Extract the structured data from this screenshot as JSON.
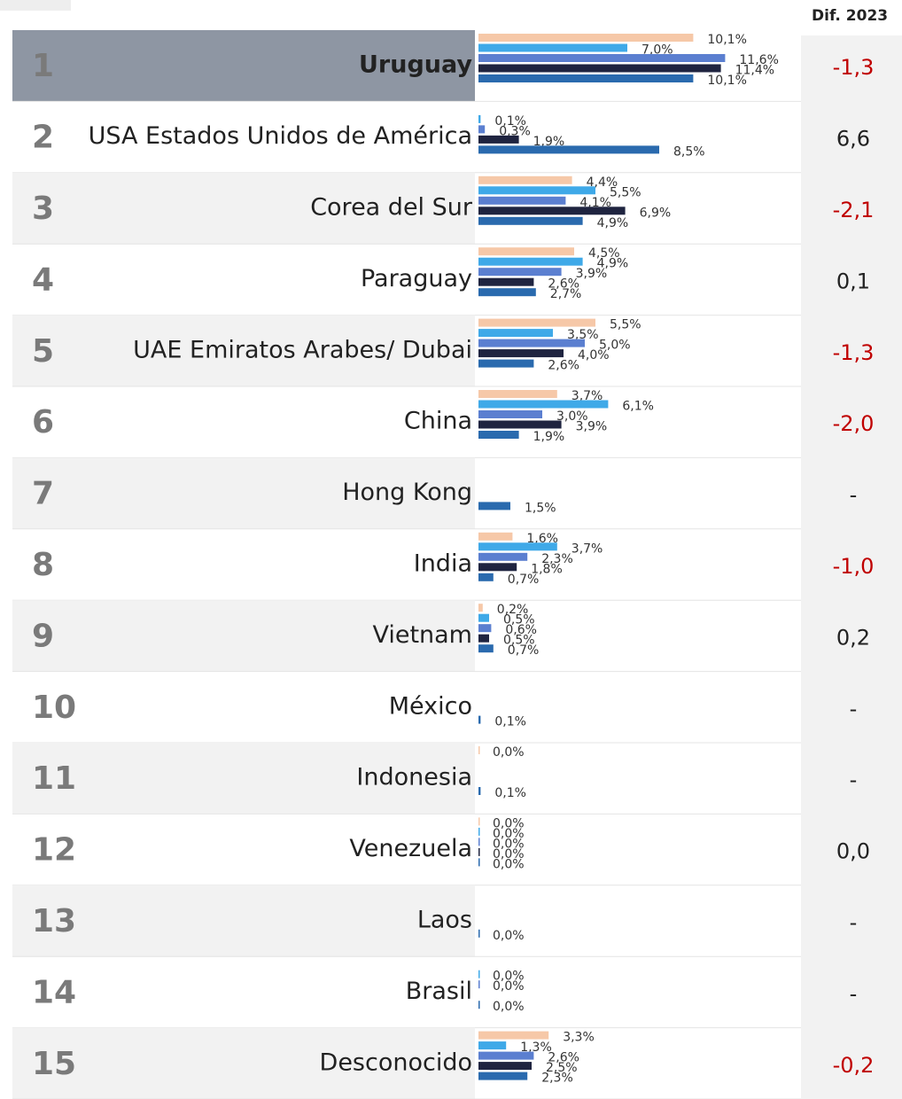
{
  "chart_data": {
    "type": "bar",
    "header": "Dif. 2023",
    "series_colors": [
      "#f6c8a8",
      "#3fa9e8",
      "#5b7fd0",
      "#1f2440",
      "#2a6aae"
    ],
    "rows": [
      {
        "rank": 1,
        "name": "Uruguay",
        "values": [
          10.1,
          7.0,
          11.6,
          11.4,
          10.1
        ],
        "value_labels": [
          "10,1%",
          "7,0%",
          "11,6%",
          "11,4%",
          "10,1%"
        ],
        "dif": "-1,3"
      },
      {
        "rank": 2,
        "name": "USA Estados Unidos de América",
        "values": [
          null,
          0.1,
          0.3,
          1.9,
          8.5
        ],
        "value_labels": [
          null,
          "0,1%",
          "0,3%",
          "1,9%",
          "8,5%"
        ],
        "dif": "6,6"
      },
      {
        "rank": 3,
        "name": "Corea del Sur",
        "values": [
          4.4,
          5.5,
          4.1,
          6.9,
          4.9
        ],
        "value_labels": [
          "4,4%",
          "5,5%",
          "4,1%",
          "6,9%",
          "4,9%"
        ],
        "dif": "-2,1"
      },
      {
        "rank": 4,
        "name": "Paraguay",
        "values": [
          4.5,
          4.9,
          3.9,
          2.6,
          2.7
        ],
        "value_labels": [
          "4,5%",
          "4,9%",
          "3,9%",
          "2,6%",
          "2,7%"
        ],
        "dif": "0,1"
      },
      {
        "rank": 5,
        "name": "UAE Emiratos Arabes/ Dubai",
        "values": [
          5.5,
          3.5,
          5.0,
          4.0,
          2.6
        ],
        "value_labels": [
          "5,5%",
          "3,5%",
          "5,0%",
          "4,0%",
          "2,6%"
        ],
        "dif": "-1,3"
      },
      {
        "rank": 6,
        "name": "China",
        "values": [
          3.7,
          6.1,
          3.0,
          3.9,
          1.9
        ],
        "value_labels": [
          "3,7%",
          "6,1%",
          "3,0%",
          "3,9%",
          "1,9%"
        ],
        "dif": "-2,0"
      },
      {
        "rank": 7,
        "name": "Hong Kong",
        "values": [
          null,
          null,
          null,
          null,
          1.5
        ],
        "value_labels": [
          null,
          null,
          null,
          null,
          "1,5%"
        ],
        "dif": "-"
      },
      {
        "rank": 8,
        "name": "India",
        "values": [
          1.6,
          3.7,
          2.3,
          1.8,
          0.7
        ],
        "value_labels": [
          "1,6%",
          "3,7%",
          "2,3%",
          "1,8%",
          "0,7%"
        ],
        "dif": "-1,0"
      },
      {
        "rank": 9,
        "name": "Vietnam",
        "values": [
          0.2,
          0.5,
          0.6,
          0.5,
          0.7
        ],
        "value_labels": [
          "0,2%",
          "0,5%",
          "0,6%",
          "0,5%",
          "0,7%"
        ],
        "dif": "0,2"
      },
      {
        "rank": 10,
        "name": "México",
        "values": [
          null,
          null,
          null,
          null,
          0.1
        ],
        "value_labels": [
          null,
          null,
          null,
          null,
          "0,1%"
        ],
        "dif": "-"
      },
      {
        "rank": 11,
        "name": "Indonesia",
        "values": [
          0.0,
          null,
          null,
          null,
          0.1
        ],
        "value_labels": [
          "0,0%",
          null,
          null,
          null,
          "0,1%"
        ],
        "dif": "-"
      },
      {
        "rank": 12,
        "name": "Venezuela",
        "values": [
          0.0,
          0.0,
          0.0,
          0.0,
          0.0
        ],
        "value_labels": [
          "0,0%",
          "0,0%",
          "0,0%",
          "0,0%",
          "0,0%"
        ],
        "dif": "0,0"
      },
      {
        "rank": 13,
        "name": "Laos",
        "values": [
          null,
          null,
          null,
          null,
          0.0
        ],
        "value_labels": [
          null,
          null,
          null,
          null,
          "0,0%"
        ],
        "dif": "-"
      },
      {
        "rank": 14,
        "name": "Brasil",
        "values": [
          null,
          0.0,
          0.0,
          null,
          0.0
        ],
        "value_labels": [
          null,
          "0,0%",
          "0,0%",
          null,
          "0,0%"
        ],
        "dif": "-"
      },
      {
        "rank": 15,
        "name": "Desconocido",
        "values": [
          3.3,
          1.3,
          2.6,
          2.5,
          2.3
        ],
        "value_labels": [
          "3,3%",
          "1,3%",
          "2,6%",
          "2,5%",
          "2,3%"
        ],
        "dif": "-0,2"
      }
    ]
  }
}
